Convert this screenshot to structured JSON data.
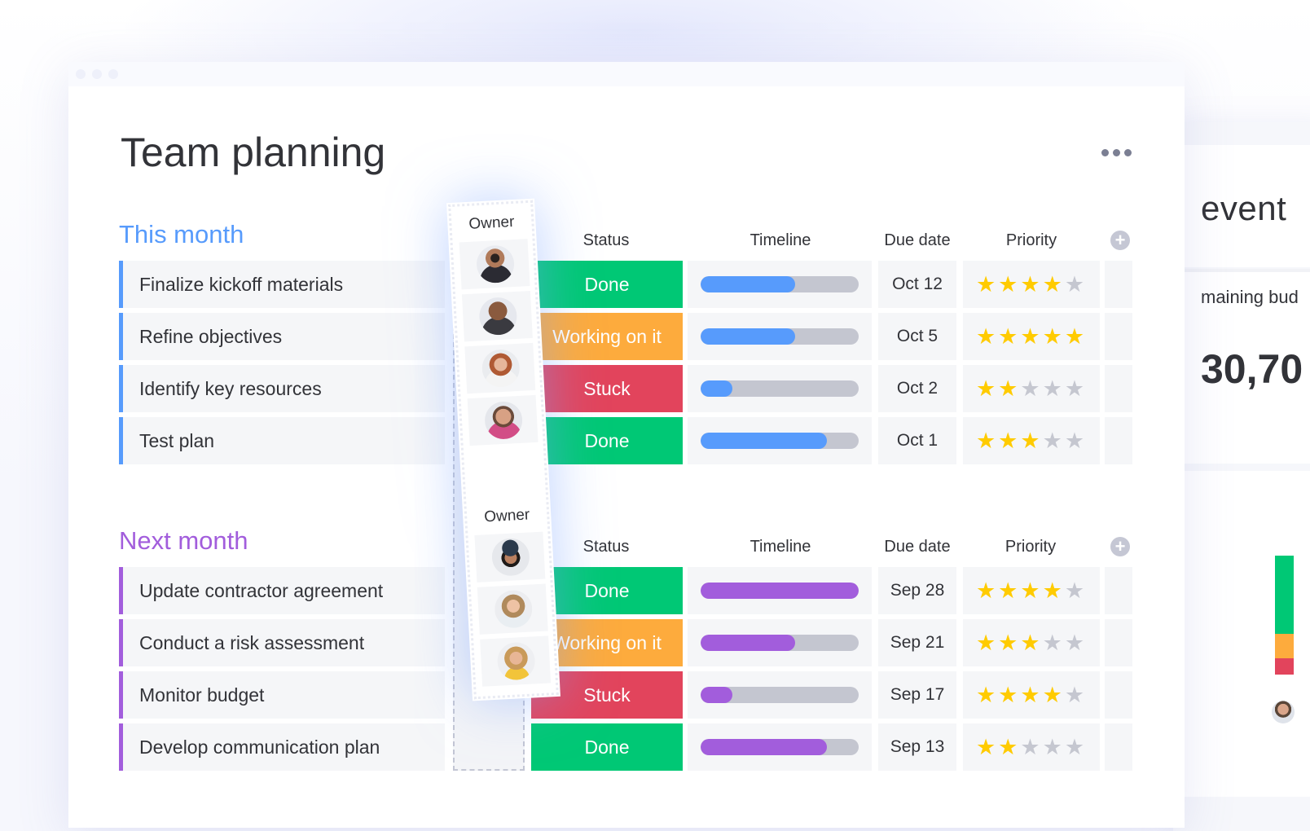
{
  "page_title": "Team planning",
  "side_panel": {
    "title": "event",
    "subtitle": "maining bud",
    "number": "30,70",
    "bar_colors": [
      "#00c875",
      "#fdab3d",
      "#e2445c"
    ]
  },
  "columns": {
    "owner": "Owner",
    "status": "Status",
    "timeline": "Timeline",
    "due_date": "Due date",
    "priority": "Priority"
  },
  "colors": {
    "done": "#00c875",
    "working": "#fdab3d",
    "stuck": "#e2445c",
    "this_month": "#579bfc",
    "next_month": "#a25ddc",
    "star": "#ffcb00"
  },
  "groups": [
    {
      "title": "This month",
      "color": "#579bfc",
      "items": [
        {
          "name": "Finalize kickoff materials",
          "status": "Done",
          "status_type": "done",
          "timeline": 0.6,
          "due": "Oct 12",
          "priority": 4,
          "owner_avatar": "avatar-man-1"
        },
        {
          "name": "Refine objectives",
          "status": "Working on it",
          "status_type": "working",
          "timeline": 0.6,
          "due": "Oct 5",
          "priority": 5,
          "owner_avatar": "avatar-man-2"
        },
        {
          "name": "Identify key resources",
          "status": "Stuck",
          "status_type": "stuck",
          "timeline": 0.2,
          "due": "Oct 2",
          "priority": 2,
          "owner_avatar": "avatar-woman-1"
        },
        {
          "name": "Test plan",
          "status": "Done",
          "status_type": "done",
          "timeline": 0.8,
          "due": "Oct 1",
          "priority": 3,
          "owner_avatar": "avatar-man-3"
        }
      ]
    },
    {
      "title": "Next month",
      "color": "#a25ddc",
      "items": [
        {
          "name": "Update contractor agreement",
          "status": "Done",
          "status_type": "done",
          "timeline": 1.0,
          "due": "Sep 28",
          "priority": 4,
          "owner_avatar": "avatar-man-4"
        },
        {
          "name": "Conduct a risk assessment",
          "status": "Working on it",
          "status_type": "working",
          "timeline": 0.6,
          "due": "Sep 21",
          "priority": 3,
          "owner_avatar": "avatar-woman-2"
        },
        {
          "name": "Monitor budget",
          "status": "Stuck",
          "status_type": "stuck",
          "timeline": 0.2,
          "due": "Sep 17",
          "priority": 4,
          "owner_avatar": "avatar-woman-3"
        },
        {
          "name": "Develop communication plan",
          "status": "Done",
          "status_type": "done",
          "timeline": 0.8,
          "due": "Sep 13",
          "priority": 2,
          "owner_avatar": ""
        }
      ]
    }
  ]
}
